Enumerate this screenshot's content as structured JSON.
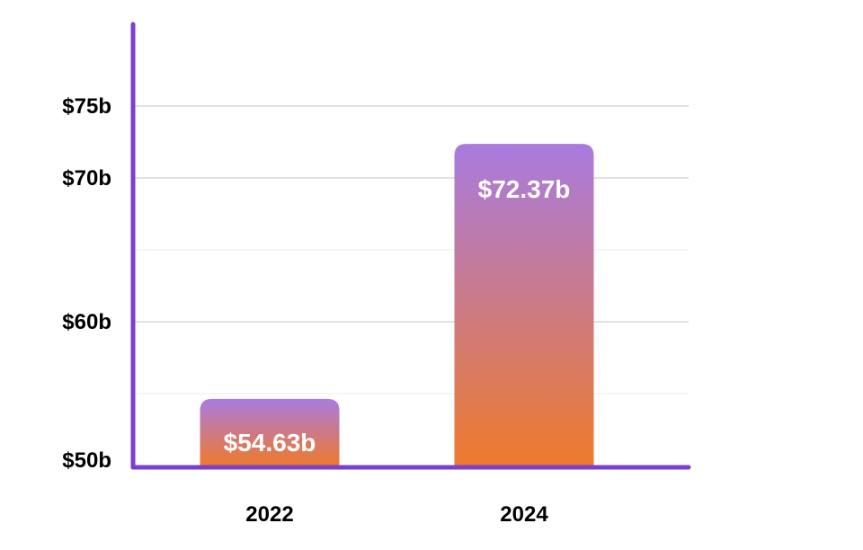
{
  "chart_data": {
    "type": "bar",
    "categories": [
      "2022",
      "2024"
    ],
    "values": [
      54.63,
      72.37
    ],
    "data_labels": [
      "$54.63b",
      "$72.37b"
    ],
    "title": "",
    "xlabel": "",
    "ylabel": "",
    "ylim": [
      50,
      75
    ],
    "yticks": [
      {
        "value": 50,
        "label": "$50b"
      },
      {
        "value": 60,
        "label": "$60b"
      },
      {
        "value": 70,
        "label": "$70b"
      },
      {
        "value": 75,
        "label": "$75b"
      }
    ],
    "minor_gridlines": [
      55,
      65,
      75
    ],
    "grid": true,
    "legend": "none",
    "colors": {
      "axis": "#7b3fcf",
      "bar_top": "#a97be0",
      "bar_bottom": "#ee7a2c",
      "grid_major": "#cfcfcf",
      "grid_minor": "#ececec"
    }
  }
}
